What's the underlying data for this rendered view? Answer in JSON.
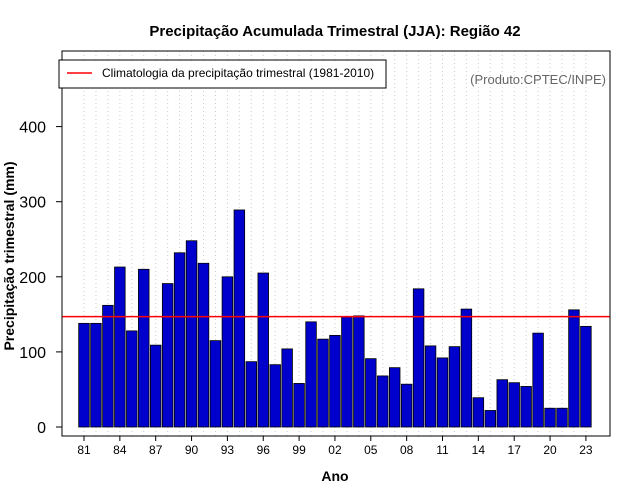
{
  "chart_data": {
    "type": "bar",
    "title": "Precipitação Acumulada Trimestral (JJA): Região 42",
    "xlabel": "Ano",
    "ylabel": "Precipitação trimestral (mm)",
    "ylim": [
      0,
      480
    ],
    "yticks": [
      0,
      100,
      200,
      300,
      400
    ],
    "grid": "vertical-dotted",
    "years": [
      1981,
      1982,
      1983,
      1984,
      1985,
      1986,
      1987,
      1988,
      1989,
      1990,
      1991,
      1992,
      1993,
      1994,
      1995,
      1996,
      1997,
      1998,
      1999,
      2000,
      2001,
      2002,
      2003,
      2004,
      2005,
      2006,
      2007,
      2008,
      2009,
      2010,
      2011,
      2012,
      2013,
      2014,
      2015,
      2016,
      2017,
      2018,
      2019,
      2020,
      2021,
      2022,
      2023
    ],
    "values": [
      138,
      138,
      162,
      213,
      128,
      210,
      109,
      191,
      232,
      248,
      218,
      115,
      200,
      289,
      87,
      205,
      83,
      104,
      58,
      140,
      117,
      122,
      147,
      148,
      91,
      68,
      79,
      57,
      184,
      108,
      92,
      107,
      157,
      39,
      22,
      63,
      59,
      54,
      125,
      25,
      25,
      156,
      134
    ],
    "x_tick_labels": [
      {
        "index": 0,
        "label": "81"
      },
      {
        "index": 3,
        "label": "84"
      },
      {
        "index": 6,
        "label": "87"
      },
      {
        "index": 9,
        "label": "90"
      },
      {
        "index": 12,
        "label": "93"
      },
      {
        "index": 15,
        "label": "96"
      },
      {
        "index": 18,
        "label": "99"
      },
      {
        "index": 21,
        "label": "02"
      },
      {
        "index": 24,
        "label": "05"
      },
      {
        "index": 27,
        "label": "08"
      },
      {
        "index": 30,
        "label": "11"
      },
      {
        "index": 33,
        "label": "14"
      },
      {
        "index": 36,
        "label": "17"
      },
      {
        "index": 39,
        "label": "20"
      },
      {
        "index": 42,
        "label": "23"
      }
    ],
    "climatology": {
      "label": "Climatologia da precipitação trimestral (1981-2010)",
      "value": 147,
      "color": "#ff0000"
    },
    "bar_color": "#0000cd",
    "legend_position": "top-left",
    "credit": "(Produto:CPTEC/INPE)"
  }
}
